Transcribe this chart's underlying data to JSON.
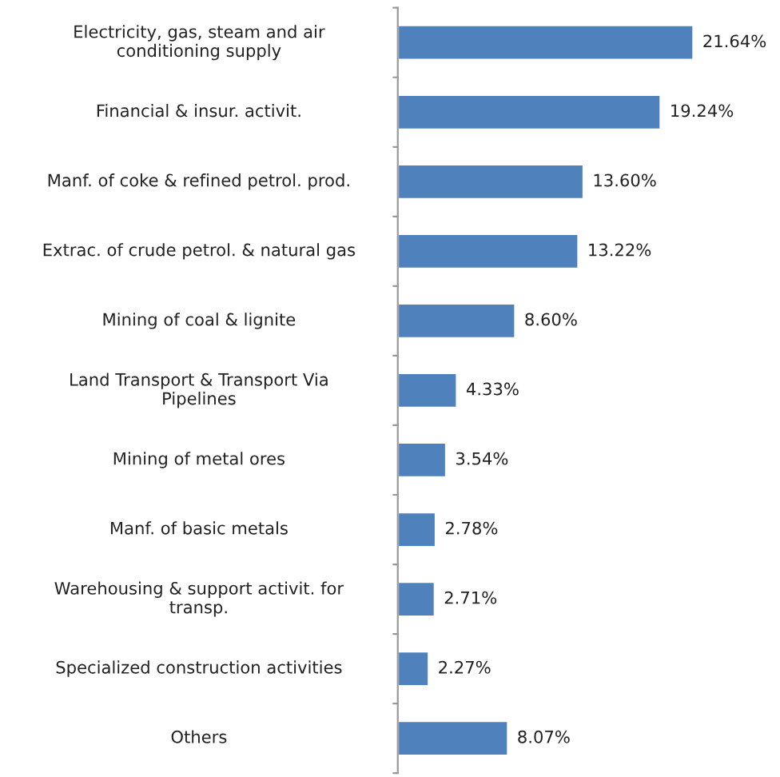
{
  "chart_data": {
    "type": "bar",
    "orientation": "horizontal",
    "categories": [
      "Electricity, gas, steam and air\nconditioning supply",
      "Financial & insur. activit.",
      "Manf. of coke & refined petrol. prod.",
      "Extrac. of crude petrol. & natural gas",
      "Mining of coal & lignite",
      "Land Transport & Transport Via\nPipelines",
      "Mining of metal ores",
      "Manf. of basic metals",
      "Warehousing & support activit. for\ntransp.",
      "Specialized construction activities",
      "Others"
    ],
    "values": [
      21.64,
      19.24,
      13.6,
      13.22,
      8.6,
      4.33,
      3.54,
      2.78,
      2.71,
      2.27,
      8.07
    ],
    "value_labels": [
      "21.64%",
      "19.24%",
      "13.60%",
      "13.22%",
      "8.60%",
      "4.33%",
      "3.54%",
      "2.78%",
      "2.71%",
      "2.27%",
      "8.07%"
    ],
    "color": "#4f81bd",
    "tick_labels": "y",
    "grid": false,
    "legend": false
  }
}
